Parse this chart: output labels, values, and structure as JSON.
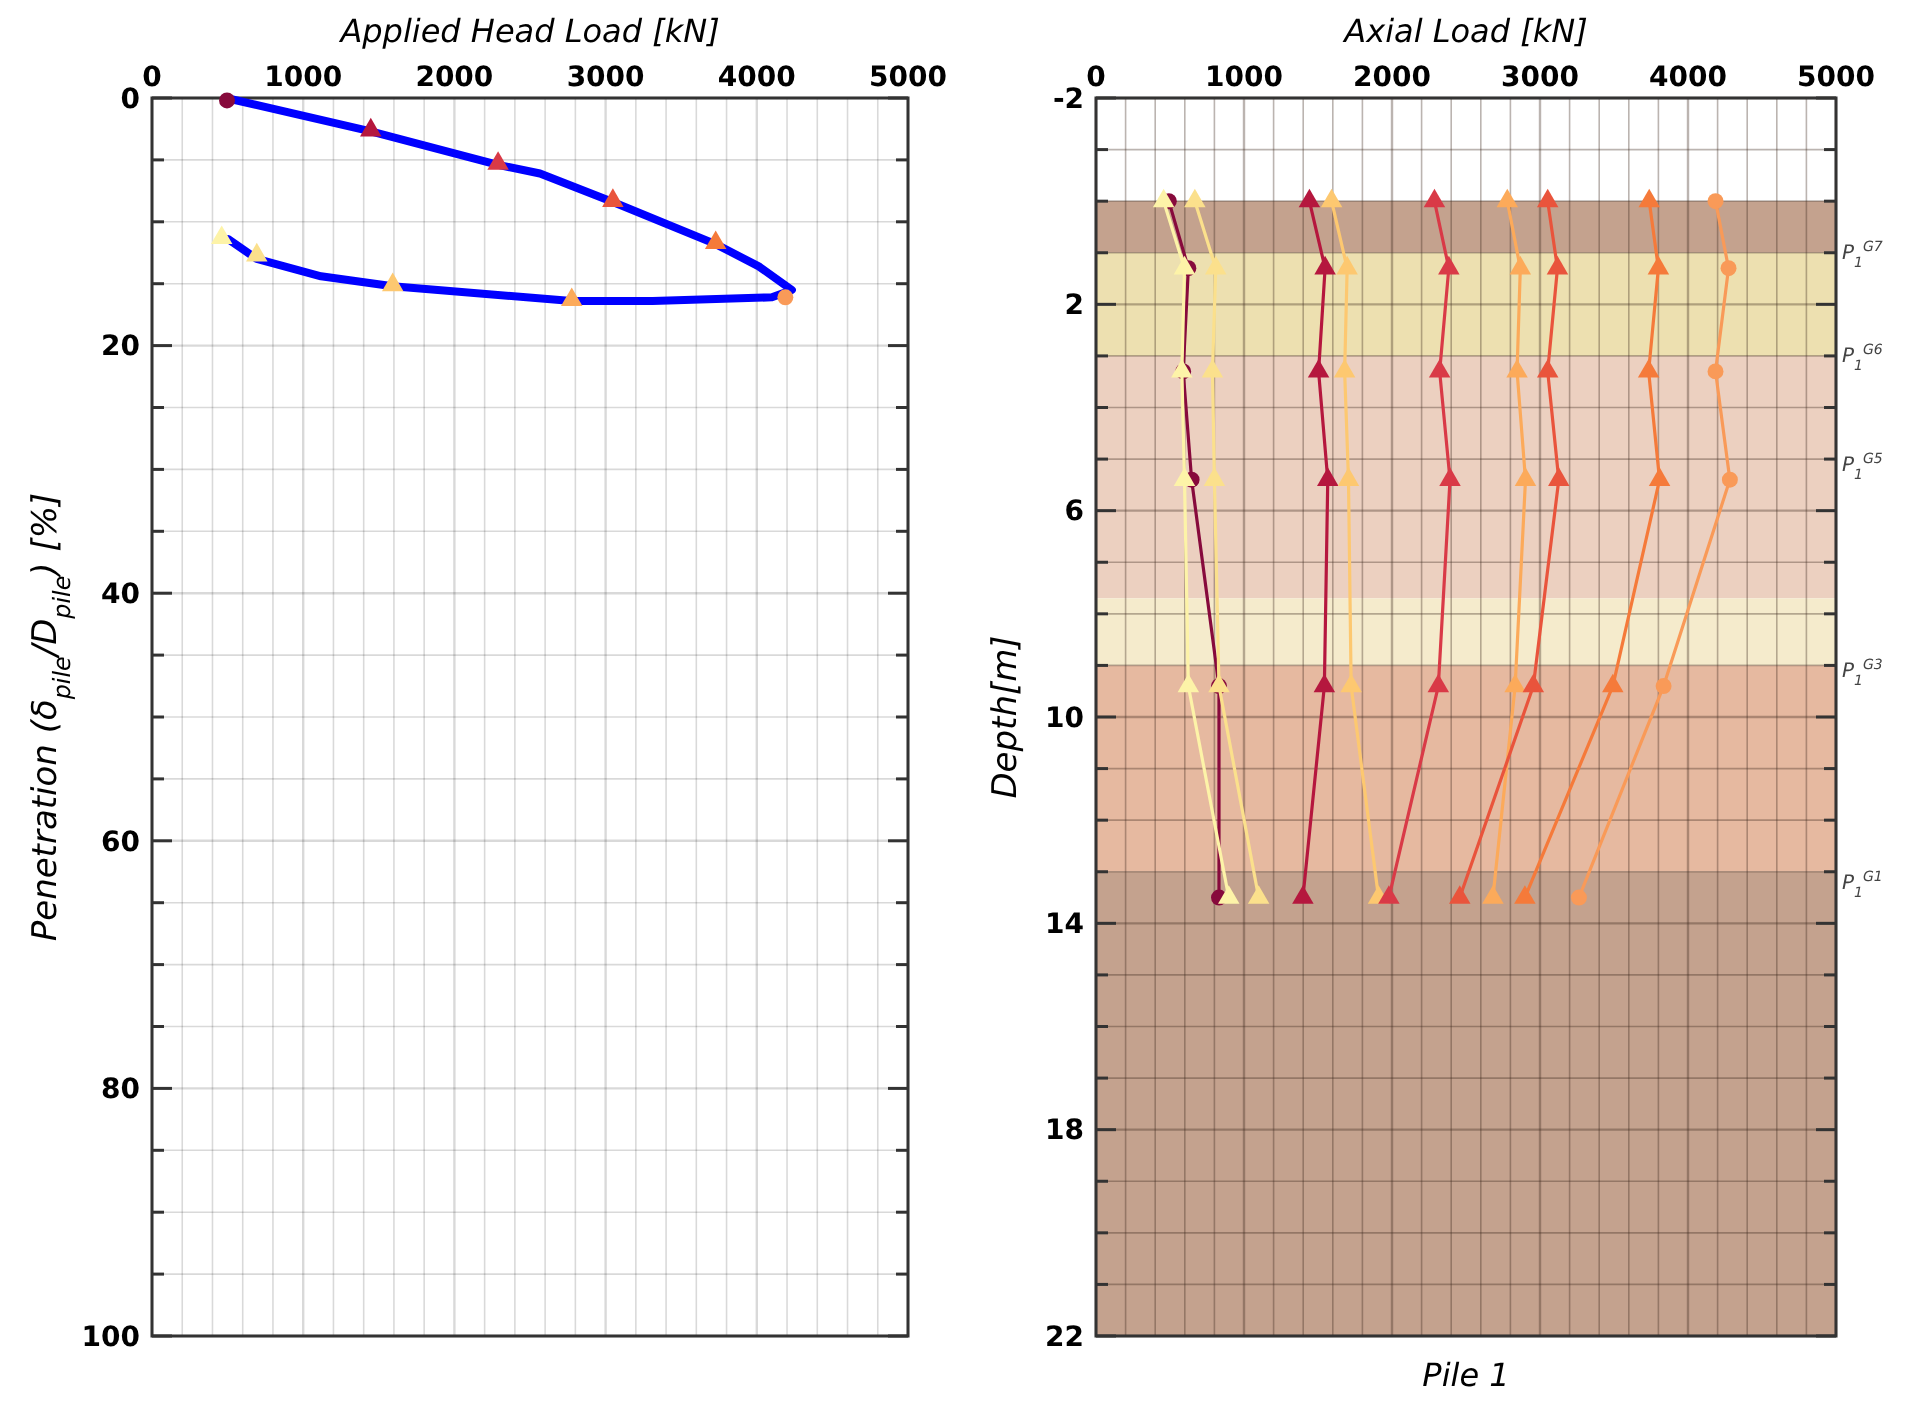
{
  "chart_data": [
    {
      "type": "line",
      "xlabel": "Applied Head Load [kN]",
      "ylabel": "Penetration (δ$_{pile}$/D$_{pile}$) [%]",
      "xlim": [
        0,
        5000
      ],
      "ylim": [
        100,
        0
      ],
      "xticks": [
        0,
        {
          "value": 200,
          "label": null
        },
        {
          "value": 400,
          "label": null
        },
        {
          "value": 600,
          "label": null
        },
        {
          "value": 800,
          "label": null
        },
        1000,
        {
          "value": 1200,
          "label": null
        },
        {
          "value": 1400,
          "label": null
        },
        {
          "value": 1600,
          "label": null
        },
        {
          "value": 1800,
          "label": null
        },
        2000,
        {
          "value": 2200,
          "label": null
        },
        {
          "value": 2400,
          "label": null
        },
        {
          "value": 2600,
          "label": null
        },
        {
          "value": 2800,
          "label": null
        },
        3000,
        {
          "value": 3200,
          "label": null
        },
        {
          "value": 3400,
          "label": null
        },
        {
          "value": 3600,
          "label": null
        },
        {
          "value": 3800,
          "label": null
        },
        4000,
        {
          "value": 4200,
          "label": null
        },
        {
          "value": 4400,
          "label": null
        },
        {
          "value": 4600,
          "label": null
        },
        {
          "value": 4800,
          "label": null
        },
        5000
      ],
      "yticks": [
        0,
        {
          "value": 5,
          "label": null
        },
        {
          "value": 10,
          "label": null
        },
        {
          "value": 15,
          "label": null
        },
        20,
        {
          "value": 25,
          "label": null
        },
        {
          "value": 30,
          "label": null
        },
        {
          "value": 35,
          "label": null
        },
        40,
        {
          "value": 45,
          "label": null
        },
        {
          "value": 50,
          "label": null
        },
        {
          "value": 55,
          "label": null
        },
        60,
        {
          "value": 65,
          "label": null
        },
        {
          "value": 70,
          "label": null
        },
        {
          "value": 75,
          "label": null
        },
        80,
        {
          "value": 85,
          "label": null
        },
        {
          "value": 90,
          "label": null
        },
        {
          "value": 95,
          "label": null
        },
        100
      ],
      "grid": true,
      "series": [
        {
          "type": "line",
          "color": "#0000ff",
          "marker": "none",
          "x": [
            526,
            1447,
            2289,
            2566,
            3048,
            3728,
            4013,
            4232,
            4100,
            3311,
            2776,
            1592,
            1118,
            693,
            504
          ],
          "values": [
            0.1,
            2.7,
            5.4,
            6.1,
            8.4,
            11.8,
            13.6,
            15.5,
            16.1,
            16.4,
            16.4,
            15.2,
            14.4,
            13.0,
            11.4
          ]
        },
        {
          "type": "scatter",
          "color": "#870a3c",
          "marker": "circle",
          "x": [
            496
          ],
          "values": [
            0.2
          ]
        },
        {
          "type": "scatter",
          "color": "#b5173e",
          "marker": "triangle",
          "x": [
            1447
          ],
          "values": [
            2.6
          ]
        },
        {
          "type": "scatter",
          "color": "#d93a47",
          "marker": "triangle",
          "x": [
            2289
          ],
          "values": [
            5.3
          ]
        },
        {
          "type": "scatter",
          "color": "#e9543c",
          "marker": "triangle",
          "x": [
            3048
          ],
          "values": [
            8.3
          ]
        },
        {
          "type": "scatter",
          "color": "#f57a3a",
          "marker": "triangle",
          "x": [
            3728
          ],
          "values": [
            11.7
          ]
        },
        {
          "type": "scatter",
          "color": "#f99a58",
          "marker": "circle",
          "x": [
            4189
          ],
          "values": [
            16.1
          ]
        },
        {
          "type": "scatter",
          "color": "#fcaa5a",
          "marker": "triangle",
          "x": [
            2776
          ],
          "values": [
            16.3
          ]
        },
        {
          "type": "scatter",
          "color": "#fdc870",
          "marker": "triangle",
          "x": [
            1592
          ],
          "values": [
            15.1
          ]
        },
        {
          "type": "scatter",
          "color": "#fbe08c",
          "marker": "triangle",
          "x": [
            693
          ],
          "values": [
            12.7
          ]
        },
        {
          "type": "scatter",
          "color": "#fdf3a8",
          "marker": "triangle",
          "x": [
            461
          ],
          "values": [
            11.3
          ]
        }
      ]
    },
    {
      "type": "line",
      "title": "Pile 1",
      "xlabel": "Axial Load [kN]",
      "ylabel": "Depth[m]",
      "xlim": [
        0,
        5000
      ],
      "ylim": [
        22,
        -2
      ],
      "xticks": [
        0,
        {
          "value": 200,
          "label": null
        },
        {
          "value": 400,
          "label": null
        },
        {
          "value": 600,
          "label": null
        },
        {
          "value": 800,
          "label": null
        },
        1000,
        {
          "value": 1200,
          "label": null
        },
        {
          "value": 1400,
          "label": null
        },
        {
          "value": 1600,
          "label": null
        },
        {
          "value": 1800,
          "label": null
        },
        2000,
        {
          "value": 2200,
          "label": null
        },
        {
          "value": 2400,
          "label": null
        },
        {
          "value": 2600,
          "label": null
        },
        {
          "value": 2800,
          "label": null
        },
        3000,
        {
          "value": 3200,
          "label": null
        },
        {
          "value": 3400,
          "label": null
        },
        {
          "value": 3600,
          "label": null
        },
        {
          "value": 3800,
          "label": null
        },
        4000,
        {
          "value": 4200,
          "label": null
        },
        {
          "value": 4400,
          "label": null
        },
        {
          "value": 4600,
          "label": null
        },
        {
          "value": 4800,
          "label": null
        },
        5000
      ],
      "yticks": [
        -2,
        {
          "value": -1,
          "label": null
        },
        {
          "value": 0,
          "label": null
        },
        {
          "value": 1,
          "label": null
        },
        2,
        {
          "value": 3,
          "label": null
        },
        {
          "value": 4,
          "label": null
        },
        {
          "value": 5,
          "label": null
        },
        6,
        {
          "value": 7,
          "label": null
        },
        {
          "value": 8,
          "label": null
        },
        {
          "value": 9,
          "label": null
        },
        10,
        {
          "value": 11,
          "label": null
        },
        {
          "value": 12,
          "label": null
        },
        {
          "value": 13,
          "label": null
        },
        14,
        {
          "value": 15,
          "label": null
        },
        {
          "value": 16,
          "label": null
        },
        {
          "value": 17,
          "label": null
        },
        18,
        {
          "value": 19,
          "label": null
        },
        {
          "value": 20,
          "label": null
        },
        {
          "value": 21,
          "label": null
        },
        22
      ],
      "grid": true,
      "bands": [
        {
          "axis": "y",
          "from": 0,
          "to": 1,
          "color": "#c4a28e"
        },
        {
          "axis": "y",
          "from": 1,
          "to": 3,
          "color": "#ede0b0"
        },
        {
          "axis": "y",
          "from": 3,
          "to": 7.7,
          "color": "#ecd0c0"
        },
        {
          "axis": "y",
          "from": 7.7,
          "to": 9,
          "color": "#f5ebcc"
        },
        {
          "axis": "y",
          "from": 9,
          "to": 13,
          "color": "#e6b9a0"
        },
        {
          "axis": "y",
          "from": 13,
          "to": 22,
          "color": "#c4a28e"
        }
      ],
      "annotations": [
        "P$_{1}$$^{G7}$",
        "P$_{1}$$^{G6}$",
        "P$_{1}$$^{G5}$",
        "P$_{1}$$^{G3}$",
        "P$_{1}$$^{G1}$"
      ],
      "series": [
        {
          "type": "line",
          "color": "#870a3c",
          "marker": "circle",
          "x": [
            492,
            624,
            589,
            646,
            831,
            831
          ],
          "values": [
            0,
            1.3,
            3.3,
            5.4,
            9.4,
            13.5
          ]
        },
        {
          "type": "line",
          "color": "#fdf3a8",
          "marker": "triangle",
          "x": [
            457,
            598,
            580,
            598,
            624,
            897
          ],
          "values": [
            0,
            1.3,
            3.3,
            5.4,
            9.4,
            13.5
          ]
        },
        {
          "type": "line",
          "color": "#fbe08c",
          "marker": "triangle",
          "x": [
            668,
            809,
            787,
            800,
            831,
            1099
          ],
          "values": [
            0,
            1.3,
            3.3,
            5.4,
            9.4,
            13.5
          ]
        },
        {
          "type": "line",
          "color": "#b5173e",
          "marker": "triangle",
          "x": [
            1442,
            1548,
            1504,
            1566,
            1543,
            1398
          ],
          "values": [
            0,
            1.3,
            3.3,
            5.4,
            9.4,
            13.5
          ]
        },
        {
          "type": "line",
          "color": "#fdc870",
          "marker": "triangle",
          "x": [
            1592,
            1697,
            1680,
            1706,
            1724,
            1909
          ],
          "values": [
            0,
            1.3,
            3.3,
            5.4,
            9.4,
            13.5
          ]
        },
        {
          "type": "line",
          "color": "#d93a47",
          "marker": "triangle",
          "x": [
            2287,
            2384,
            2322,
            2392,
            2313,
            1979
          ],
          "values": [
            0,
            1.3,
            3.3,
            5.4,
            9.4,
            13.5
          ]
        },
        {
          "type": "line",
          "color": "#fcaa5a",
          "marker": "triangle",
          "x": [
            2779,
            2867,
            2845,
            2902,
            2832,
            2682
          ],
          "values": [
            0,
            1.3,
            3.3,
            5.4,
            9.4,
            13.5
          ]
        },
        {
          "type": "line",
          "color": "#e9543c",
          "marker": "triangle",
          "x": [
            3052,
            3118,
            3052,
            3127,
            2955,
            2458
          ],
          "values": [
            0,
            1.3,
            3.3,
            5.4,
            9.4,
            13.5
          ]
        },
        {
          "type": "line",
          "color": "#f57a3a",
          "marker": "triangle",
          "x": [
            3738,
            3800,
            3734,
            3808,
            3492,
            2898
          ],
          "values": [
            0,
            1.3,
            3.3,
            5.4,
            9.4,
            13.5
          ]
        },
        {
          "type": "line",
          "color": "#f99a58",
          "marker": "circle",
          "x": [
            4186,
            4274,
            4186,
            4283,
            3835,
            3263
          ],
          "values": [
            0,
            1.3,
            3.3,
            5.4,
            9.4,
            13.5
          ]
        }
      ]
    }
  ]
}
